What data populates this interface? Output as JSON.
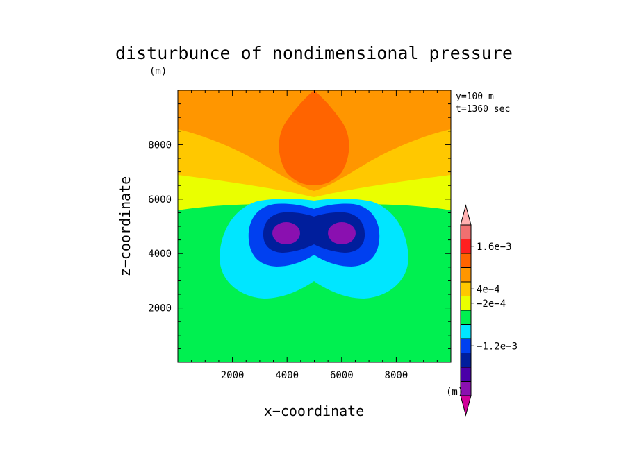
{
  "chart_data": {
    "type": "heatmap",
    "title": "disturbunce of nondimensional pressure",
    "unit_top": "(m)",
    "unit_bottom": "(m)",
    "info_lines": [
      "y=100 m",
      "t=1360 sec"
    ],
    "xlabel": "x−coordinate",
    "ylabel": "z−coordinate",
    "xlim": [
      0,
      10000
    ],
    "ylim": [
      0,
      10000
    ],
    "x_ticks": [
      2000,
      4000,
      6000,
      8000
    ],
    "y_ticks": [
      2000,
      4000,
      6000,
      8000
    ],
    "x_tick_labels": [
      "2000",
      "4000",
      "6000",
      "8000"
    ],
    "y_tick_labels": [
      "2000",
      "4000",
      "6000",
      "8000"
    ],
    "colorbar": {
      "colors": [
        "#d0009a",
        "#8a10b0",
        "#4a00a8",
        "#001e9c",
        "#0040f0",
        "#00e6ff",
        "#00f050",
        "#eaff00",
        "#ffc800",
        "#ff9600",
        "#ff6400",
        "#ff2020",
        "#f07070",
        "#ffb0b0"
      ],
      "labels": [
        "1.6e−3",
        "4e−4",
        "−2e−4",
        "−1.2e−3"
      ],
      "label_values": [
        0.0016,
        0.0004,
        -0.0002,
        -0.0012
      ]
    },
    "regions": [
      {
        "name": "background",
        "color": "#00f050"
      },
      {
        "name": "yellow-band",
        "color": "#eaff00"
      },
      {
        "name": "gold-band",
        "color": "#ffc800"
      },
      {
        "name": "orange-top",
        "color": "#ff9600"
      },
      {
        "name": "dark-orange-plume",
        "color": "#ff6400"
      },
      {
        "name": "cyan-lobe",
        "color": "#00e6ff"
      },
      {
        "name": "blue-lobe",
        "color": "#0040f0"
      },
      {
        "name": "navy-lobe",
        "color": "#001e9c"
      },
      {
        "name": "purple-core-left",
        "color": "#8a10b0"
      },
      {
        "name": "purple-core-right",
        "color": "#8a10b0"
      }
    ]
  }
}
